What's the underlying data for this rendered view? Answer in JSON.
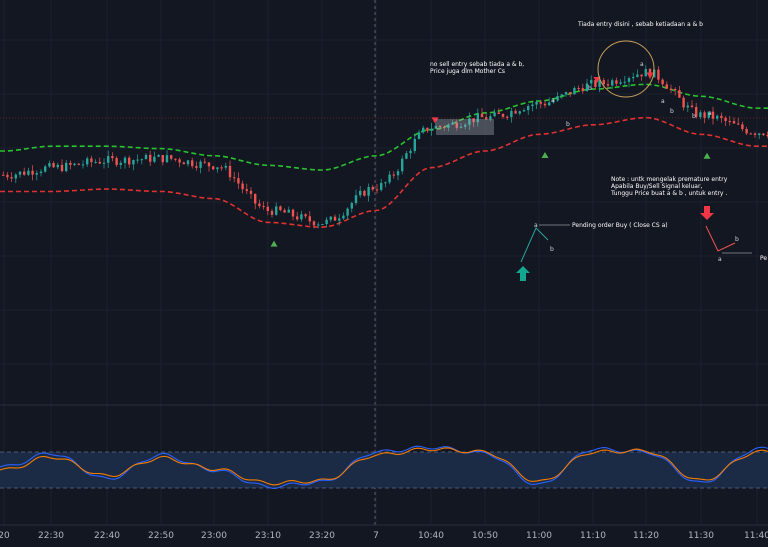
{
  "colors": {
    "background": "#131722",
    "up_candle": "#26a69a",
    "down_candle": "#ef5350",
    "upper_band": "#27c22e",
    "lower_band": "#e03131",
    "buy_marker": "#4caf50",
    "sell_marker": "#f23645",
    "osc_fast": "#2962ff",
    "osc_slow": "#f57c00",
    "osc_zone": "#1c2b45",
    "cursor": "#6b7080",
    "circle": "#c8a15a",
    "arrow_up": "#14a68f",
    "arrow_down": "#f23645"
  },
  "time_axis": {
    "labels": [
      "20",
      "22:30",
      "22:40",
      "22:50",
      "23:00",
      "23:10",
      "23:20",
      "7",
      "10:40",
      "10:50",
      "11:00",
      "11:10",
      "11:20",
      "11:30",
      "11:40"
    ]
  },
  "annotations": {
    "no_sell_line1": "no sell entry sebab tiada a & b,",
    "no_sell_line2": "Price juga dlm Mother Cs",
    "tiada_entry": "Tiada entry disini , sebab ketiadaan a & b",
    "note_line1": "Note : untk mengelak premature entry",
    "note_line2": "Apabila Buy/Sell Signal keluar,",
    "note_line3": "Tunggu Price buat a & b , untuk entry .",
    "pending_buy": "Pending order Buy ( Close CS a)",
    "pending_sell_fragment": "Pe",
    "label_a": "a",
    "label_b": "b"
  },
  "chart_data": {
    "type": "candlestick",
    "x": [
      "20",
      "22:30",
      "22:40",
      "22:50",
      "23:00",
      "23:10",
      "23:20",
      "7",
      "10:40",
      "10:50",
      "11:00",
      "11:10",
      "11:20",
      "11:30",
      "11:40"
    ],
    "close": [
      1000,
      1003,
      1006,
      1007,
      1004,
      985,
      980,
      995,
      1020,
      1024,
      1030,
      1038,
      1043,
      1025,
      1018
    ],
    "series": [
      {
        "type": "line",
        "values": [
          1010,
          1012,
          1012,
          1011,
          1008,
          1004,
          1002,
          1008,
          1019,
          1026,
          1031,
          1036,
          1038,
          1033,
          1028
        ]
      },
      {
        "type": "line",
        "values": [
          993,
          993,
          994,
          993,
          990,
          980,
          978,
          985,
          1003,
          1010,
          1017,
          1021,
          1024,
          1017,
          1012
        ]
      }
    ],
    "oscillator": {
      "upper_level": 80,
      "lower_level": 20,
      "fast": [
        55,
        78,
        35,
        75,
        50,
        22,
        30,
        80,
        88,
        78,
        25,
        85,
        80,
        28,
        85
      ],
      "slow": [
        50,
        72,
        40,
        70,
        52,
        28,
        32,
        75,
        85,
        80,
        30,
        80,
        82,
        32,
        80
      ]
    },
    "signals": {
      "buy_at": [
        "23:10",
        "11:00",
        "11:30"
      ],
      "sell_at": [
        "10:40",
        "11:10",
        "11:20"
      ]
    }
  }
}
